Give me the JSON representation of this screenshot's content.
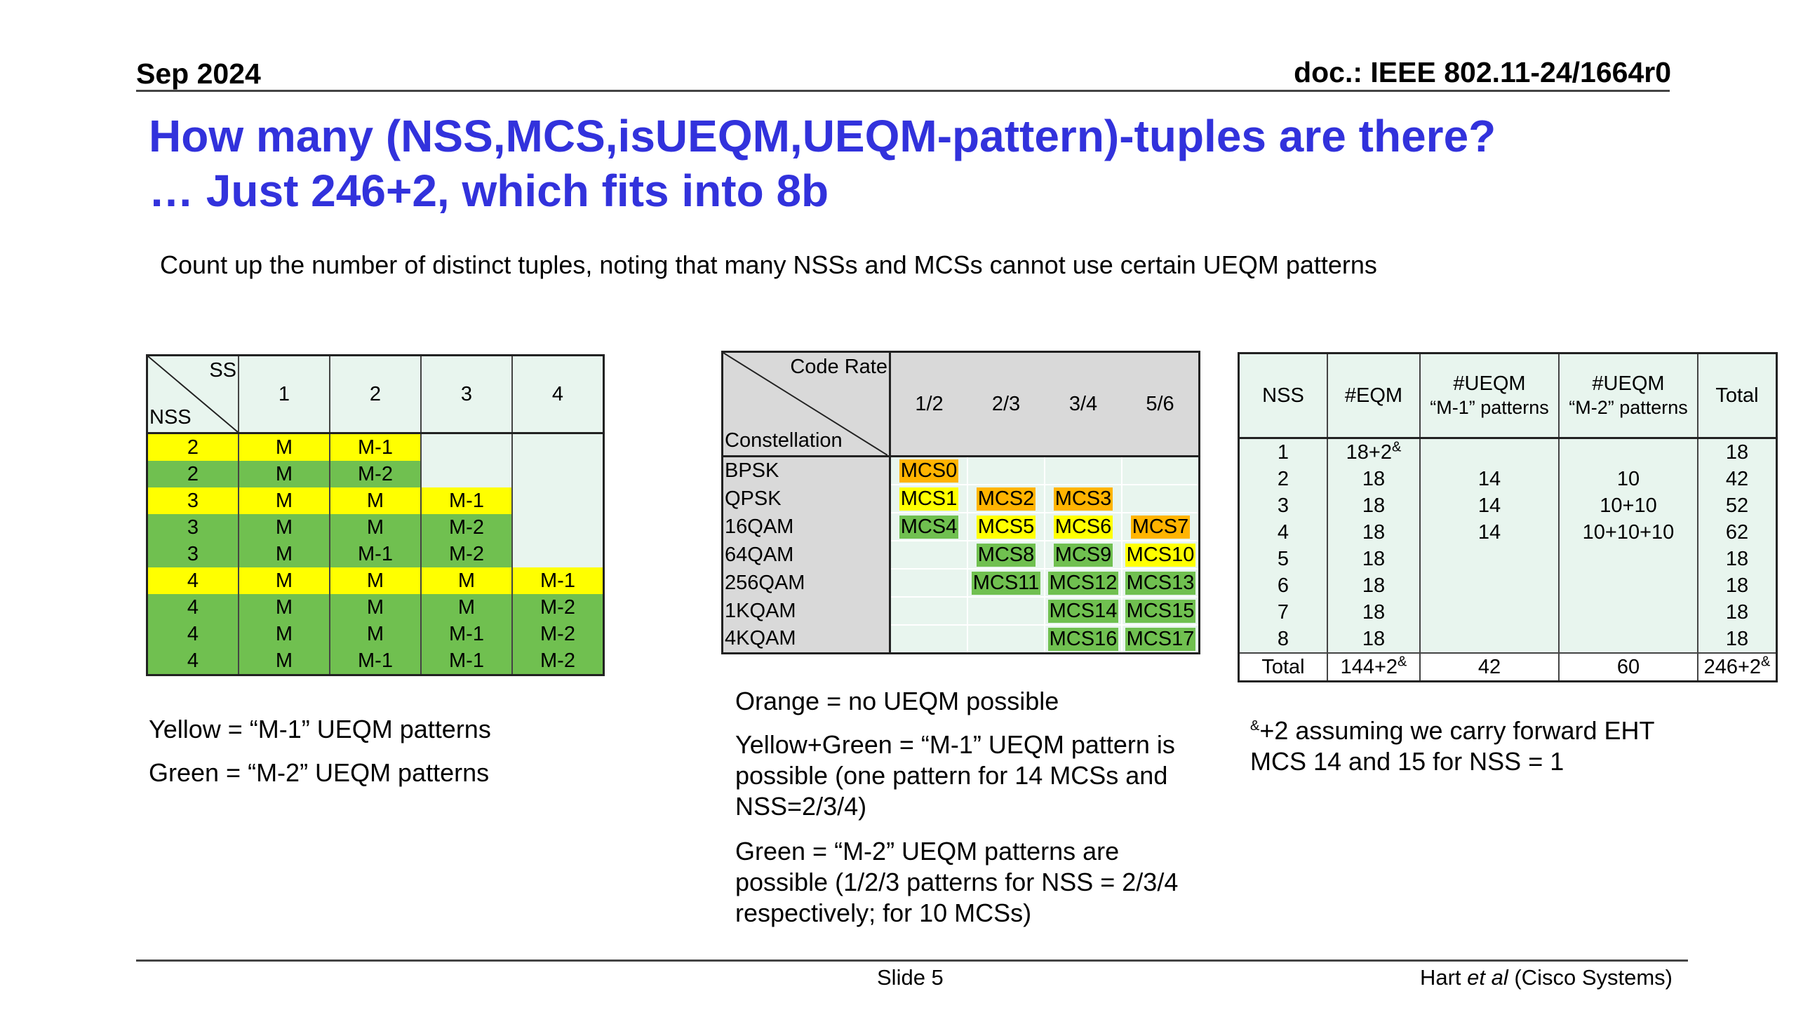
{
  "header": {
    "date": "Sep 2024",
    "doc": "doc.: IEEE 802.11-24/1664r0"
  },
  "title": {
    "line1": "How many (NSS,MCS,isUEQM,UEQM-pattern)-tuples are there?",
    "line2": "… Just 246+2, which fits into 8b"
  },
  "subtitle": "Count up the number of distinct tuples, noting that many NSSs and MCSs cannot use certain UEQM patterns",
  "colors": {
    "title": "#3232dc",
    "yellow": "#ffff00",
    "green": "#70c050",
    "orange": "#ffb400",
    "lightbg": "#e8f5ee",
    "gray": "#d9d9d9"
  },
  "table1": {
    "corner_top": "SS",
    "corner_bottom": "NSS",
    "cols": [
      "1",
      "2",
      "3",
      "4"
    ],
    "rows": [
      {
        "nss": "2",
        "color": "yellow",
        "cells": [
          "M",
          "M-1",
          "",
          ""
        ]
      },
      {
        "nss": "2",
        "color": "green",
        "cells": [
          "M",
          "M-2",
          "",
          ""
        ]
      },
      {
        "nss": "3",
        "color": "yellow",
        "cells": [
          "M",
          "M",
          "M-1",
          ""
        ]
      },
      {
        "nss": "3",
        "color": "green",
        "cells": [
          "M",
          "M",
          "M-2",
          ""
        ]
      },
      {
        "nss": "3",
        "color": "green",
        "cells": [
          "M",
          "M-1",
          "M-2",
          ""
        ]
      },
      {
        "nss": "4",
        "color": "yellow",
        "cells": [
          "M",
          "M",
          "M",
          "M-1"
        ]
      },
      {
        "nss": "4",
        "color": "green",
        "cells": [
          "M",
          "M",
          "M",
          "M-2"
        ]
      },
      {
        "nss": "4",
        "color": "green",
        "cells": [
          "M",
          "M",
          "M-1",
          "M-2"
        ]
      },
      {
        "nss": "4",
        "color": "green",
        "cells": [
          "M",
          "M-1",
          "M-1",
          "M-2"
        ]
      }
    ]
  },
  "table2": {
    "corner_top": "Code Rate",
    "corner_bottom": "Constellation",
    "cols": [
      "1/2",
      "2/3",
      "3/4",
      "5/6"
    ],
    "rows": [
      {
        "label": "BPSK",
        "cells": [
          {
            "t": "MCS0",
            "c": "orange"
          },
          {
            "t": "",
            "c": ""
          },
          {
            "t": "",
            "c": ""
          },
          {
            "t": "",
            "c": ""
          }
        ]
      },
      {
        "label": "QPSK",
        "cells": [
          {
            "t": "MCS1",
            "c": "yellow"
          },
          {
            "t": "MCS2",
            "c": "orange"
          },
          {
            "t": "MCS3",
            "c": "orange"
          },
          {
            "t": "",
            "c": ""
          }
        ]
      },
      {
        "label": "16QAM",
        "cells": [
          {
            "t": "MCS4",
            "c": "green"
          },
          {
            "t": "MCS5",
            "c": "yellow"
          },
          {
            "t": "MCS6",
            "c": "yellow"
          },
          {
            "t": "MCS7",
            "c": "orange"
          }
        ]
      },
      {
        "label": "64QAM",
        "cells": [
          {
            "t": "",
            "c": ""
          },
          {
            "t": "MCS8",
            "c": "green"
          },
          {
            "t": "MCS9",
            "c": "green"
          },
          {
            "t": "MCS10",
            "c": "yellow"
          }
        ]
      },
      {
        "label": "256QAM",
        "cells": [
          {
            "t": "",
            "c": ""
          },
          {
            "t": "MCS11",
            "c": "green"
          },
          {
            "t": "MCS12",
            "c": "green"
          },
          {
            "t": "MCS13",
            "c": "green"
          }
        ]
      },
      {
        "label": "1KQAM",
        "cells": [
          {
            "t": "",
            "c": ""
          },
          {
            "t": "",
            "c": ""
          },
          {
            "t": "MCS14",
            "c": "green"
          },
          {
            "t": "MCS15",
            "c": "green"
          }
        ]
      },
      {
        "label": "4KQAM",
        "cells": [
          {
            "t": "",
            "c": ""
          },
          {
            "t": "",
            "c": ""
          },
          {
            "t": "MCS16",
            "c": "green"
          },
          {
            "t": "MCS17",
            "c": "green"
          }
        ]
      }
    ]
  },
  "table3": {
    "headers": [
      "NSS",
      "#EQM",
      "#UEQM\n“M-1” patterns",
      "#UEQM\n“M-2” patterns",
      "Total"
    ],
    "rows": [
      [
        "1",
        "18+2&",
        "",
        "",
        "18"
      ],
      [
        "2",
        "18",
        "14",
        "10",
        "42"
      ],
      [
        "3",
        "18",
        "14",
        "10+10",
        "52"
      ],
      [
        "4",
        "18",
        "14",
        "10+10+10",
        "62"
      ],
      [
        "5",
        "18",
        "",
        "",
        "18"
      ],
      [
        "6",
        "18",
        "",
        "",
        "18"
      ],
      [
        "7",
        "18",
        "",
        "",
        "18"
      ],
      [
        "8",
        "18",
        "",
        "",
        "18"
      ]
    ],
    "total": [
      "Total",
      "144+2&",
      "42",
      "60",
      "246+2&"
    ]
  },
  "notes": {
    "yellow": "Yellow = “M-1” UEQM patterns",
    "green": "Green = “M-2” UEQM patterns",
    "orange": "Orange = no UEQM possible",
    "yellow_green": "Yellow+Green = “M-1” UEQM pattern is possible (one pattern for 14 MCSs and NSS=2/3/4)",
    "green2": "Green = “M-2” UEQM patterns are possible (1/2/3 patterns for NSS = 2/3/4 respectively; for 10 MCSs)",
    "footnote_mark": "&",
    "footnote": "+2 assuming we carry forward EHT MCS 14 and 15 for NSS = 1"
  },
  "footer": {
    "slide": "Slide 5",
    "author_pre": "Hart ",
    "author_em": "et al",
    "author_post": " (Cisco Systems)"
  }
}
